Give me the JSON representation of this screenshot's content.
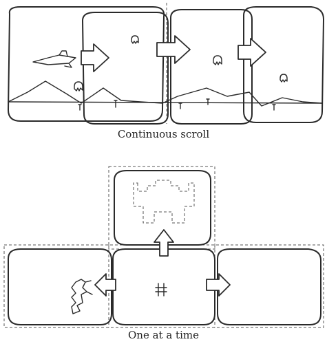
{
  "captions": {
    "continuous": "Continuous scroll",
    "one_at_a_time": "One at a time"
  },
  "icons": {
    "ship": "spaceship-icon",
    "alien": "alien-icon",
    "man": "man-figure-icon",
    "castle": "castle-icon",
    "player": "player-sprite-icon"
  },
  "colors": {
    "ink": "#2a2a2a",
    "paper": "#ffffff"
  }
}
